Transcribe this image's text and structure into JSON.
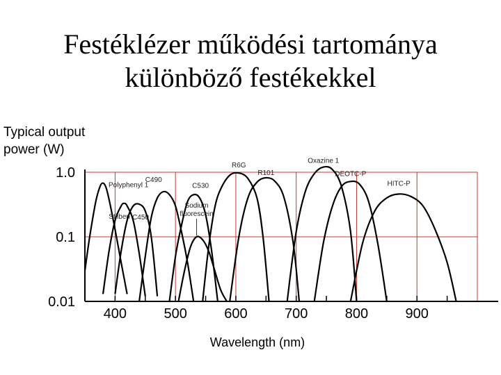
{
  "title": {
    "line1": "Festéklézer működési tartománya",
    "line2": "különböző festékekkel"
  },
  "chart_data": {
    "type": "line",
    "ylabel_lines": [
      "Typical output",
      "power (W)"
    ],
    "xlabel": "Wavelength (nm)",
    "xlim": [
      350,
      1000
    ],
    "ylim": [
      0.01,
      1.0
    ],
    "y_scale": "log",
    "x_ticks": [
      400,
      500,
      600,
      700,
      800,
      900
    ],
    "y_ticks": [
      {
        "value": 1.0,
        "label": "1.0"
      },
      {
        "value": 0.1,
        "label": "0.1"
      },
      {
        "value": 0.01,
        "label": "0.01"
      }
    ],
    "grid": true,
    "grid_color": "#c0392b",
    "curve_color": "#000000",
    "series": [
      {
        "name": "Polyphenyl 1",
        "x": [
          350,
          358,
          368,
          375,
          380,
          385,
          390,
          400,
          410,
          420
        ],
        "y": [
          0.03,
          0.1,
          0.35,
          0.6,
          0.68,
          0.58,
          0.38,
          0.13,
          0.04,
          0.013
        ]
      },
      {
        "name": "Stilben",
        "x": [
          380,
          390,
          400,
          410,
          415,
          420,
          430,
          440,
          450
        ],
        "y": [
          0.013,
          0.06,
          0.18,
          0.3,
          0.33,
          0.3,
          0.18,
          0.055,
          0.012
        ]
      },
      {
        "name": "C450",
        "x": [
          400,
          410,
          420,
          430,
          440,
          450,
          460,
          470
        ],
        "y": [
          0.013,
          0.06,
          0.18,
          0.3,
          0.32,
          0.25,
          0.1,
          0.012
        ]
      },
      {
        "name": "C490",
        "x": [
          440,
          450,
          460,
          470,
          480,
          490,
          500,
          510,
          520,
          530
        ],
        "y": [
          0.01,
          0.05,
          0.2,
          0.4,
          0.5,
          0.45,
          0.3,
          0.12,
          0.04,
          0.01
        ]
      },
      {
        "name": "C530",
        "x": [
          490,
          500,
          510,
          520,
          530,
          540,
          550,
          560,
          570
        ],
        "y": [
          0.01,
          0.05,
          0.15,
          0.35,
          0.45,
          0.4,
          0.22,
          0.06,
          0.01
        ]
      },
      {
        "name": "Sodium fluorescein",
        "x": [
          505,
          515,
          525,
          535,
          545,
          555,
          565,
          575,
          585
        ],
        "y": [
          0.01,
          0.03,
          0.07,
          0.1,
          0.09,
          0.06,
          0.03,
          0.015,
          0.01
        ]
      },
      {
        "name": "R6G",
        "x": [
          545,
          555,
          565,
          575,
          590,
          605,
          620,
          635,
          645,
          655
        ],
        "y": [
          0.01,
          0.07,
          0.28,
          0.55,
          0.9,
          0.97,
          0.8,
          0.4,
          0.1,
          0.01
        ]
      },
      {
        "name": "R101",
        "x": [
          590,
          605,
          620,
          635,
          650,
          665,
          680,
          695,
          705
        ],
        "y": [
          0.01,
          0.1,
          0.4,
          0.7,
          0.82,
          0.72,
          0.4,
          0.08,
          0.01
        ]
      },
      {
        "name": "Oxazine 1",
        "x": [
          685,
          700,
          715,
          730,
          745,
          760,
          775,
          790,
          800
        ],
        "y": [
          0.01,
          0.12,
          0.5,
          0.95,
          1.2,
          1.1,
          0.6,
          0.12,
          0.01
        ]
      },
      {
        "name": "DEOTC-P",
        "x": [
          730,
          745,
          760,
          775,
          790,
          805,
          820,
          835,
          850
        ],
        "y": [
          0.01,
          0.08,
          0.3,
          0.6,
          0.72,
          0.65,
          0.35,
          0.08,
          0.01
        ]
      },
      {
        "name": "HITC-P",
        "x": [
          790,
          810,
          830,
          850,
          870,
          890,
          910,
          930,
          950,
          965
        ],
        "y": [
          0.01,
          0.08,
          0.25,
          0.4,
          0.46,
          0.42,
          0.3,
          0.13,
          0.04,
          0.01
        ]
      }
    ]
  }
}
